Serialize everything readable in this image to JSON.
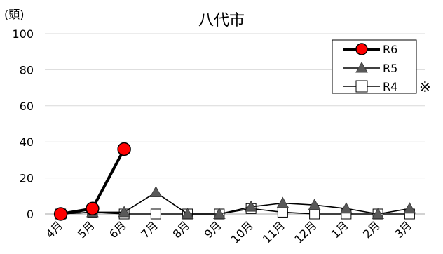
{
  "chart_data": {
    "type": "line",
    "title": "八代市",
    "ylabel": "(頭)",
    "ylim": [
      0,
      100
    ],
    "yticks": [
      0,
      20,
      40,
      60,
      80,
      100
    ],
    "categories": [
      "4月",
      "5月",
      "6月",
      "7月",
      "8月",
      "9月",
      "10月",
      "11月",
      "12月",
      "1月",
      "2月",
      "3月"
    ],
    "legend_position": "top-right",
    "legend_note": "※",
    "series": [
      {
        "name": "R6",
        "marker": "circle",
        "color": "#ff0000",
        "values": [
          0,
          3,
          36,
          null,
          null,
          null,
          null,
          null,
          null,
          null,
          null,
          null
        ]
      },
      {
        "name": "R5",
        "marker": "triangle",
        "color": "#595959",
        "values": [
          0,
          1,
          1,
          12,
          0,
          0,
          4,
          6,
          5,
          3,
          0,
          3
        ]
      },
      {
        "name": "R4",
        "marker": "square",
        "color": "#ffffff",
        "values": [
          0,
          1,
          0,
          0,
          0,
          0,
          3,
          1,
          0,
          0,
          0,
          0
        ]
      }
    ]
  }
}
